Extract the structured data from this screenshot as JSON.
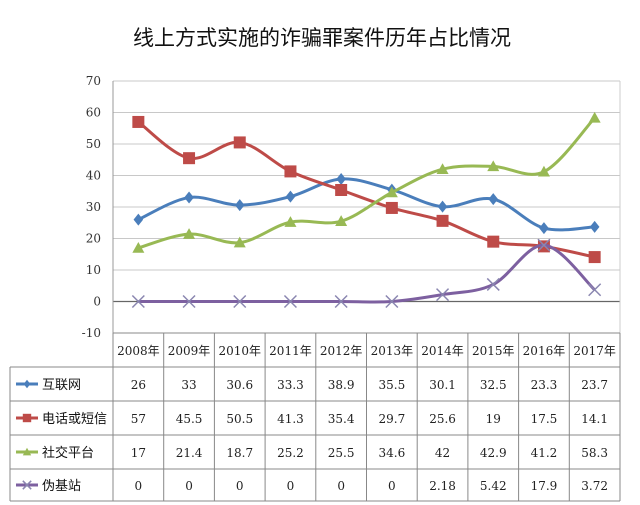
{
  "chart_data": {
    "type": "line",
    "title": "线上方式实施的诈骗罪案件历年占比情况",
    "xlabel": "",
    "ylabel": "",
    "ylim": [
      -10,
      70
    ],
    "yticks": [
      "70",
      "60",
      "50",
      "40",
      "30",
      "20",
      "10",
      "0",
      "-10"
    ],
    "categories": [
      "2008年",
      "2009年",
      "2010年",
      "2011年",
      "2012年",
      "2013年",
      "2014年",
      "2015年",
      "2016年",
      "2017年"
    ],
    "grid": true,
    "legend": "data-table-left",
    "series": [
      {
        "name": "互联网",
        "color": "#4a7ebb",
        "marker": "diamond",
        "values": [
          26,
          33,
          30.6,
          33.3,
          38.9,
          35.5,
          30.1,
          32.5,
          23.3,
          23.7
        ],
        "labels": [
          "26",
          "33",
          "30.6",
          "33.3",
          "38.9",
          "35.5",
          "30.1",
          "32.5",
          "23.3",
          "23.7"
        ]
      },
      {
        "name": "电话或短信",
        "color": "#be4b48",
        "marker": "square",
        "values": [
          57,
          45.5,
          50.5,
          41.3,
          35.4,
          29.7,
          25.6,
          19,
          17.5,
          14.1
        ],
        "labels": [
          "57",
          "45.5",
          "50.5",
          "41.3",
          "35.4",
          "29.7",
          "25.6",
          "19",
          "17.5",
          "14.1"
        ]
      },
      {
        "name": "社交平台",
        "color": "#98b954",
        "marker": "triangle",
        "values": [
          17,
          21.4,
          18.7,
          25.2,
          25.5,
          34.6,
          42,
          42.9,
          41.2,
          58.3
        ],
        "labels": [
          "17",
          "21.4",
          "18.7",
          "25.2",
          "25.5",
          "34.6",
          "42",
          "42.9",
          "41.2",
          "58.3"
        ]
      },
      {
        "name": "伪基站",
        "color": "#7d60a0",
        "marker": "x",
        "values": [
          0,
          0,
          0,
          0,
          0,
          0,
          2.18,
          5.42,
          17.9,
          3.72
        ],
        "labels": [
          "0",
          "0",
          "0",
          "0",
          "0",
          "0",
          "2.18",
          "5.42",
          "17.9",
          "3.72"
        ]
      }
    ]
  }
}
